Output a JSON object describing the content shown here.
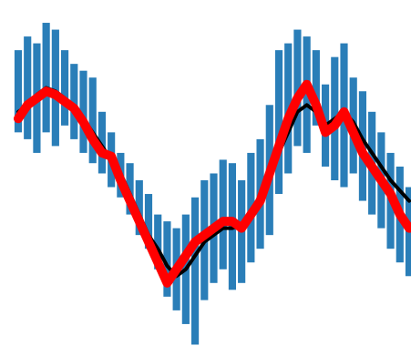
{
  "chart_data": {
    "type": "line",
    "title": "",
    "xlabel": "",
    "ylabel": "",
    "grid": false,
    "legend": "none",
    "xlim": [
      0,
      42
    ],
    "ylim": [
      0,
      100
    ],
    "x": [
      0,
      1,
      2,
      3,
      4,
      5,
      6,
      7,
      8,
      9,
      10,
      11,
      12,
      13,
      14,
      15,
      16,
      17,
      18,
      19,
      20,
      21,
      22,
      23,
      24,
      25,
      26,
      27,
      28,
      29,
      30,
      31,
      32,
      33,
      34,
      35,
      36,
      37,
      38,
      39,
      40,
      41,
      42
    ],
    "band": {
      "color": "#1f77b4",
      "low": [
        64,
        62,
        58,
        64,
        60,
        66,
        62,
        58,
        55,
        52,
        48,
        45,
        40,
        34,
        30,
        24,
        16,
        12,
        8,
        2,
        15,
        20,
        24,
        18,
        20,
        26,
        30,
        34,
        46,
        52,
        60,
        58,
        66,
        54,
        50,
        48,
        52,
        44,
        40,
        36,
        30,
        26,
        22
      ],
      "high": [
        88,
        92,
        90,
        96,
        94,
        88,
        84,
        82,
        80,
        70,
        64,
        58,
        55,
        50,
        46,
        40,
        38,
        36,
        40,
        45,
        50,
        52,
        56,
        55,
        50,
        58,
        62,
        72,
        88,
        90,
        94,
        92,
        88,
        78,
        86,
        90,
        80,
        76,
        70,
        64,
        58,
        54,
        48
      ]
    },
    "series": [
      {
        "color": "#000000",
        "values": [
          70,
          72,
          75,
          77,
          76,
          74,
          71,
          68,
          64,
          60,
          56,
          52,
          46,
          40,
          34,
          30,
          25,
          22,
          24,
          28,
          32,
          34,
          36,
          36,
          37,
          40,
          46,
          52,
          58,
          64,
          70,
          72,
          70,
          66,
          68,
          70,
          67,
          62,
          58,
          54,
          50,
          47,
          44
        ]
      },
      {
        "color": "#ff0000",
        "values": [
          68,
          72,
          74,
          76,
          75,
          73,
          71,
          67,
          62,
          58,
          57,
          50,
          44,
          38,
          32,
          26,
          20,
          24,
          28,
          32,
          34,
          36,
          38,
          38,
          36,
          40,
          44,
          52,
          60,
          68,
          74,
          78,
          72,
          64,
          66,
          70,
          64,
          58,
          54,
          50,
          46,
          40,
          36
        ]
      }
    ]
  }
}
